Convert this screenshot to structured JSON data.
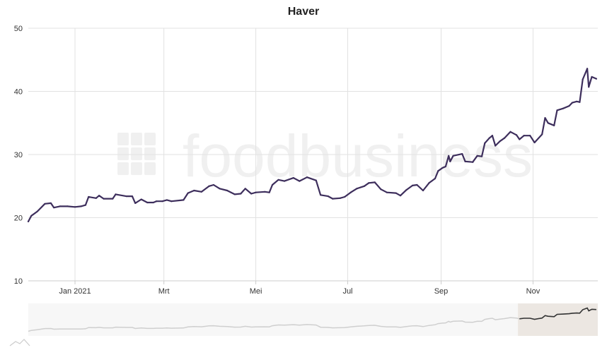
{
  "chart_data": {
    "type": "line",
    "title": "Haver",
    "watermark": "foodbusiness",
    "xlabel": "",
    "ylabel": "",
    "ylim": [
      10,
      50
    ],
    "yticks": [
      10,
      20,
      30,
      40,
      50
    ],
    "xlim": [
      "2020-12-01",
      "2021-12-14"
    ],
    "xticks": [
      {
        "label": "Jan 2021",
        "date": "2021-01-01"
      },
      {
        "label": "Mrt",
        "date": "2021-03-01"
      },
      {
        "label": "Mei",
        "date": "2021-05-01"
      },
      {
        "label": "Jul",
        "date": "2021-07-01"
      },
      {
        "label": "Sep",
        "date": "2021-09-01"
      },
      {
        "label": "Nov",
        "date": "2021-11-01"
      }
    ],
    "grid": true,
    "line_color": "#3d2e5c",
    "navigator_window": [
      "2021-10-22",
      "2021-12-14"
    ],
    "series": [
      {
        "name": "",
        "points": [
          [
            "2020-12-01",
            19.4
          ],
          [
            "2020-12-03",
            20.3
          ],
          [
            "2020-12-07",
            21.0
          ],
          [
            "2020-12-12",
            22.2
          ],
          [
            "2020-12-16",
            22.3
          ],
          [
            "2020-12-18",
            21.6
          ],
          [
            "2020-12-22",
            21.8
          ],
          [
            "2020-12-27",
            21.8
          ],
          [
            "2021-01-01",
            21.7
          ],
          [
            "2021-01-05",
            21.8
          ],
          [
            "2021-01-08",
            22.0
          ],
          [
            "2021-01-10",
            23.3
          ],
          [
            "2021-01-15",
            23.1
          ],
          [
            "2021-01-17",
            23.5
          ],
          [
            "2021-01-20",
            23.0
          ],
          [
            "2021-01-26",
            23.0
          ],
          [
            "2021-01-28",
            23.7
          ],
          [
            "2021-02-04",
            23.4
          ],
          [
            "2021-02-08",
            23.4
          ],
          [
            "2021-02-10",
            22.3
          ],
          [
            "2021-02-14",
            22.9
          ],
          [
            "2021-02-18",
            22.4
          ],
          [
            "2021-02-22",
            22.4
          ],
          [
            "2021-02-24",
            22.6
          ],
          [
            "2021-02-28",
            22.6
          ],
          [
            "2021-03-03",
            22.8
          ],
          [
            "2021-03-06",
            22.6
          ],
          [
            "2021-03-14",
            22.8
          ],
          [
            "2021-03-17",
            23.9
          ],
          [
            "2021-03-21",
            24.3
          ],
          [
            "2021-03-26",
            24.1
          ],
          [
            "2021-03-31",
            25.0
          ],
          [
            "2021-04-03",
            25.2
          ],
          [
            "2021-04-07",
            24.6
          ],
          [
            "2021-04-12",
            24.3
          ],
          [
            "2021-04-17",
            23.7
          ],
          [
            "2021-04-21",
            23.8
          ],
          [
            "2021-04-24",
            24.6
          ],
          [
            "2021-04-28",
            23.8
          ],
          [
            "2021-05-01",
            24.0
          ],
          [
            "2021-05-07",
            24.1
          ],
          [
            "2021-05-10",
            24.0
          ],
          [
            "2021-05-12",
            25.2
          ],
          [
            "2021-05-16",
            26.0
          ],
          [
            "2021-05-20",
            25.8
          ],
          [
            "2021-05-26",
            26.3
          ],
          [
            "2021-05-30",
            25.8
          ],
          [
            "2021-06-04",
            26.4
          ],
          [
            "2021-06-10",
            25.9
          ],
          [
            "2021-06-13",
            23.6
          ],
          [
            "2021-06-18",
            23.4
          ],
          [
            "2021-06-21",
            23.0
          ],
          [
            "2021-06-26",
            23.1
          ],
          [
            "2021-06-29",
            23.3
          ],
          [
            "2021-07-03",
            24.0
          ],
          [
            "2021-07-07",
            24.6
          ],
          [
            "2021-07-12",
            25.0
          ],
          [
            "2021-07-15",
            25.5
          ],
          [
            "2021-07-19",
            25.6
          ],
          [
            "2021-07-23",
            24.5
          ],
          [
            "2021-07-27",
            24.0
          ],
          [
            "2021-08-02",
            23.9
          ],
          [
            "2021-08-05",
            23.5
          ],
          [
            "2021-08-09",
            24.4
          ],
          [
            "2021-08-13",
            25.1
          ],
          [
            "2021-08-16",
            25.2
          ],
          [
            "2021-08-20",
            24.3
          ],
          [
            "2021-08-24",
            25.5
          ],
          [
            "2021-08-28",
            26.2
          ],
          [
            "2021-08-30",
            27.4
          ],
          [
            "2021-09-02",
            27.9
          ],
          [
            "2021-09-04",
            28.1
          ],
          [
            "2021-09-06",
            29.8
          ],
          [
            "2021-09-07",
            28.9
          ],
          [
            "2021-09-09",
            29.8
          ],
          [
            "2021-09-15",
            30.1
          ],
          [
            "2021-09-17",
            28.9
          ],
          [
            "2021-09-22",
            28.8
          ],
          [
            "2021-09-25",
            29.8
          ],
          [
            "2021-09-28",
            29.7
          ],
          [
            "2021-09-30",
            31.8
          ],
          [
            "2021-10-03",
            32.6
          ],
          [
            "2021-10-05",
            33.0
          ],
          [
            "2021-10-07",
            31.4
          ],
          [
            "2021-10-10",
            32.1
          ],
          [
            "2021-10-13",
            32.6
          ],
          [
            "2021-10-17",
            33.6
          ],
          [
            "2021-10-21",
            33.1
          ],
          [
            "2021-10-23",
            32.4
          ],
          [
            "2021-10-26",
            33.0
          ],
          [
            "2021-10-30",
            33.0
          ],
          [
            "2021-11-02",
            31.9
          ],
          [
            "2021-11-07",
            33.2
          ],
          [
            "2021-11-09",
            35.8
          ],
          [
            "2021-11-11",
            35.0
          ],
          [
            "2021-11-15",
            34.6
          ],
          [
            "2021-11-17",
            37.0
          ],
          [
            "2021-11-21",
            37.3
          ],
          [
            "2021-11-25",
            37.7
          ],
          [
            "2021-11-27",
            38.2
          ],
          [
            "2021-11-30",
            38.4
          ],
          [
            "2021-12-02",
            38.3
          ],
          [
            "2021-12-04",
            41.9
          ],
          [
            "2021-12-07",
            43.6
          ],
          [
            "2021-12-08",
            40.7
          ],
          [
            "2021-12-10",
            42.3
          ],
          [
            "2021-12-13",
            42.0
          ]
        ]
      }
    ]
  }
}
